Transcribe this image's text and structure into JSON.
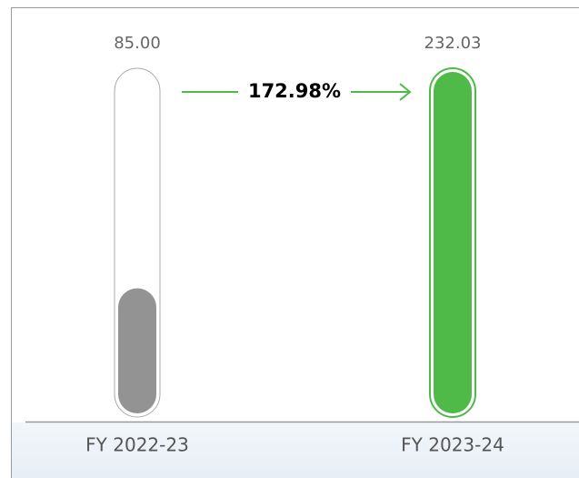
{
  "chart_data": {
    "type": "thermometer-bar",
    "categories": [
      "FY 2022-23",
      "FY 2023-24"
    ],
    "values": [
      85,
      232.03
    ],
    "value_labels": [
      "85.00",
      "232.03"
    ],
    "colors": [
      "#939393",
      "#4fba48"
    ],
    "annotation": "172.98%",
    "annotation_color": "#4fba48"
  }
}
